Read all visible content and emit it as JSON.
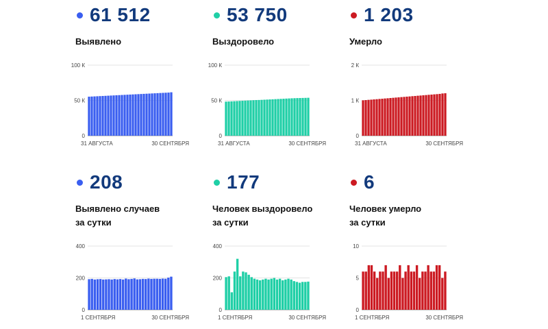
{
  "panels": [
    {
      "id": "confirmed-total",
      "value": "61 512",
      "label": "Выявлено",
      "color": "#3a5ef0",
      "x_start": "31 АВГУСТА",
      "x_end": "30 СЕНТЯБРЯ",
      "ticks": [
        "100 К",
        "50 К",
        "0"
      ]
    },
    {
      "id": "recovered-total",
      "value": "53 750",
      "label": "Выздоровело",
      "color": "#1fcfa6",
      "x_start": "31 АВГУСТА",
      "x_end": "30 СЕНТЯБРЯ",
      "ticks": [
        "100 К",
        "50 К",
        "0"
      ]
    },
    {
      "id": "deaths-total",
      "value": "1 203",
      "label": "Умерло",
      "color": "#cc1a22",
      "x_start": "31 АВГУСТА",
      "x_end": "30 СЕНТЯБРЯ",
      "ticks": [
        "2 К",
        "1 К",
        "0"
      ]
    },
    {
      "id": "confirmed-daily",
      "value": "208",
      "label_line1": "Выявлено случаев",
      "label_line2": "за сутки",
      "color": "#3a5ef0",
      "x_start": "1 СЕНТЯБРЯ",
      "x_end": "30 СЕНТЯБРЯ",
      "ticks": [
        "400",
        "200",
        "0"
      ]
    },
    {
      "id": "recovered-daily",
      "value": "177",
      "label_line1": "Человек выздоровело",
      "label_line2": "за сутки",
      "color": "#1fcfa6",
      "x_start": "1 СЕНТЯБРЯ",
      "x_end": "30 СЕНТЯБРЯ",
      "ticks": [
        "400",
        "200",
        "0"
      ]
    },
    {
      "id": "deaths-daily",
      "value": "6",
      "label_line1": "Человек умерло",
      "label_line2": "за сутки",
      "color": "#cc1a22",
      "x_start": "1 СЕНТЯБРЯ",
      "x_end": "30 СЕНТЯБРЯ",
      "ticks": [
        "10",
        "5",
        "0"
      ]
    }
  ],
  "chart_data": [
    {
      "type": "bar",
      "ylim": [
        0,
        100000
      ],
      "values": [
        55300,
        55500,
        55700,
        55900,
        56100,
        56300,
        56500,
        56700,
        56900,
        57100,
        57300,
        57500,
        57700,
        57900,
        58100,
        58300,
        58500,
        58700,
        58900,
        59100,
        59300,
        59500,
        59700,
        59900,
        60100,
        60300,
        60500,
        60700,
        60900,
        61100,
        61512
      ]
    },
    {
      "type": "bar",
      "ylim": [
        0,
        100000
      ],
      "values": [
        48300,
        48500,
        48700,
        48900,
        49100,
        49300,
        49500,
        49700,
        49900,
        50100,
        50300,
        50500,
        50600,
        50800,
        51000,
        51200,
        51400,
        51600,
        51800,
        52000,
        52200,
        52400,
        52600,
        52800,
        53000,
        53150,
        53300,
        53400,
        53500,
        53600,
        53750
      ]
    },
    {
      "type": "bar",
      "ylim": [
        0,
        2000
      ],
      "values": [
        1003,
        1009,
        1016,
        1022,
        1029,
        1035,
        1042,
        1048,
        1055,
        1061,
        1068,
        1074,
        1081,
        1087,
        1094,
        1100,
        1107,
        1113,
        1120,
        1126,
        1133,
        1139,
        1146,
        1152,
        1159,
        1165,
        1172,
        1178,
        1185,
        1197,
        1203
      ]
    },
    {
      "type": "bar",
      "ylim": [
        0,
        400
      ],
      "values": [
        192,
        194,
        190,
        192,
        193,
        190,
        191,
        192,
        190,
        193,
        191,
        193,
        190,
        196,
        192,
        194,
        197,
        191,
        192,
        194,
        193,
        196,
        194,
        195,
        195,
        194,
        196,
        195,
        202,
        208
      ]
    },
    {
      "type": "bar",
      "ylim": [
        0,
        400
      ],
      "values": [
        205,
        210,
        110,
        240,
        320,
        210,
        240,
        235,
        220,
        205,
        195,
        190,
        185,
        190,
        195,
        190,
        195,
        200,
        190,
        195,
        185,
        190,
        195,
        190,
        180,
        175,
        170,
        175,
        175,
        177
      ]
    },
    {
      "type": "bar",
      "ylim": [
        0,
        10
      ],
      "values": [
        6,
        6,
        7,
        7,
        6,
        5,
        6,
        6,
        7,
        5,
        6,
        6,
        6,
        7,
        5,
        6,
        7,
        6,
        6,
        7,
        5,
        6,
        6,
        7,
        6,
        6,
        7,
        7,
        5,
        6
      ]
    }
  ]
}
